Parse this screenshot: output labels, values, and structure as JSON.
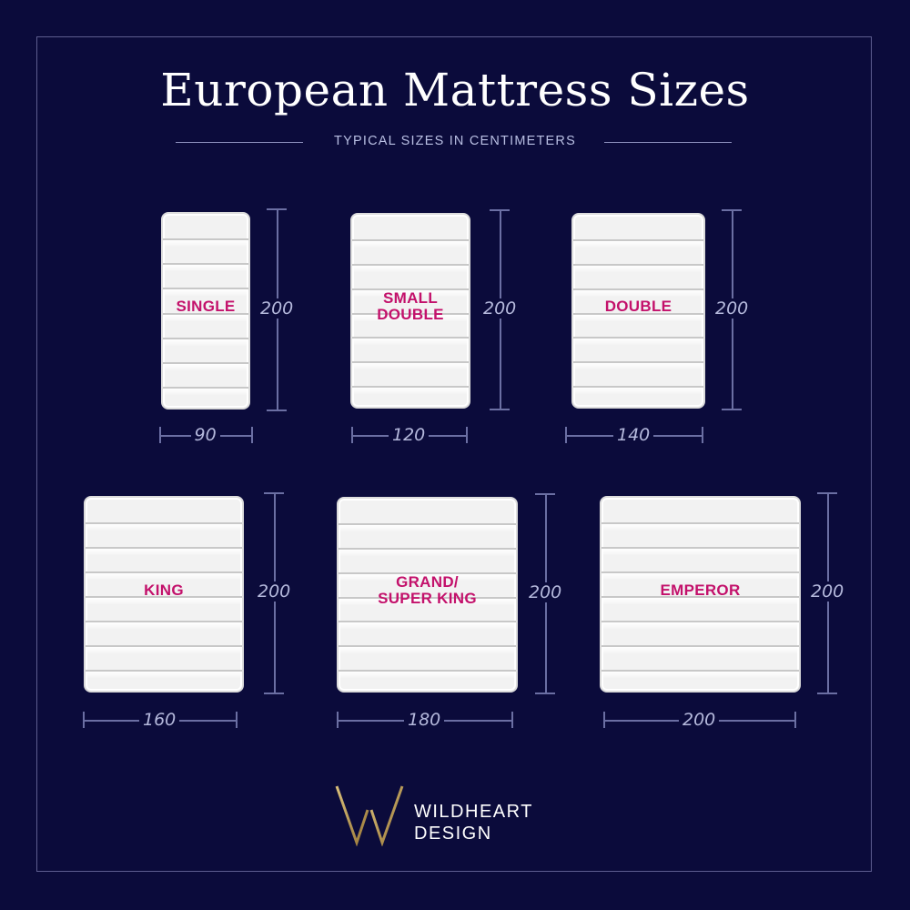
{
  "title": "European Mattress Sizes",
  "subtitle": "TYPICAL SIZES IN CENTIMETERS",
  "mattresses": [
    {
      "name_lines": [
        "SINGLE"
      ],
      "width": "90",
      "length": "200"
    },
    {
      "name_lines": [
        "SMALL",
        "DOUBLE"
      ],
      "width": "120",
      "length": "200"
    },
    {
      "name_lines": [
        "DOUBLE"
      ],
      "width": "140",
      "length": "200"
    },
    {
      "name_lines": [
        "KING"
      ],
      "width": "160",
      "length": "200"
    },
    {
      "name_lines": [
        "GRAND/",
        "SUPER KING"
      ],
      "width": "180",
      "length": "200"
    },
    {
      "name_lines": [
        "EMPEROR"
      ],
      "width": "200",
      "length": "200"
    }
  ],
  "logo": {
    "line1": "WILDHEART",
    "line2": "DESIGN",
    "icon": "wildheart-monogram-icon"
  },
  "colors": {
    "background": "#0b0b3b",
    "label": "#c3116b",
    "accent_gold": "#b8964f"
  }
}
